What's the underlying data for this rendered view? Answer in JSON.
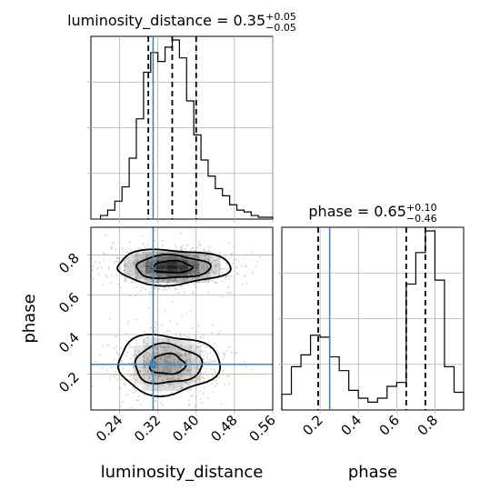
{
  "chart_data": [
    {
      "type": "histogram",
      "panel": "luminosity_distance-marginal",
      "title": "luminosity_distance = 0.35",
      "title_sup": "+0.05",
      "title_sub": "−0.05",
      "x_range": [
        0.18,
        0.56
      ],
      "bin_edges": [
        0.2,
        0.215,
        0.23,
        0.245,
        0.26,
        0.275,
        0.29,
        0.305,
        0.32,
        0.335,
        0.35,
        0.365,
        0.38,
        0.395,
        0.41,
        0.425,
        0.44,
        0.455,
        0.47,
        0.485,
        0.5,
        0.515,
        0.53,
        0.545,
        0.56
      ],
      "density": [
        0.02,
        0.05,
        0.1,
        0.18,
        0.34,
        0.56,
        0.82,
        0.93,
        0.88,
        0.96,
        1.0,
        0.9,
        0.66,
        0.47,
        0.33,
        0.24,
        0.17,
        0.13,
        0.08,
        0.05,
        0.04,
        0.02,
        0.01,
        0.01
      ],
      "quantiles": [
        0.3,
        0.35,
        0.4
      ],
      "truth": 0.31
    },
    {
      "type": "histogram",
      "panel": "phase-marginal",
      "title": "phase = 0.65",
      "title_sup": "+0.10",
      "title_sub": "−0.46",
      "x_range": [
        0.0,
        0.95
      ],
      "bin_edges": [
        0.0,
        0.05,
        0.1,
        0.15,
        0.2,
        0.25,
        0.3,
        0.35,
        0.4,
        0.45,
        0.5,
        0.55,
        0.6,
        0.65,
        0.7,
        0.75,
        0.8,
        0.85,
        0.9,
        0.95
      ],
      "density": [
        0.08,
        0.22,
        0.28,
        0.38,
        0.37,
        0.27,
        0.2,
        0.1,
        0.06,
        0.04,
        0.06,
        0.12,
        0.14,
        0.64,
        0.8,
        0.91,
        0.66,
        0.22,
        0.09
      ],
      "quantiles": [
        0.19,
        0.65,
        0.75
      ],
      "truth": 0.25
    },
    {
      "type": "scatter",
      "panel": "luminosity_distance-vs-phase",
      "x_range": [
        0.18,
        0.56
      ],
      "y_range": [
        0.02,
        0.94
      ],
      "xlabel": "luminosity_distance",
      "ylabel": "phase",
      "xticks": [
        "0.24",
        "0.32",
        "0.40",
        "0.48",
        "0.56"
      ],
      "yticks": [
        "0.2",
        "0.4",
        "0.6",
        "0.8"
      ],
      "truth": [
        0.31,
        0.25
      ],
      "modes": [
        {
          "center": [
            0.35,
            0.74
          ],
          "sigma": [
            0.05,
            0.05
          ],
          "count": 800
        },
        {
          "center": [
            0.34,
            0.25
          ],
          "sigma": [
            0.045,
            0.085
          ],
          "count": 560
        }
      ],
      "contour_levels": 3
    },
    {
      "type": "axis",
      "panel": "phase-axis",
      "xlabel": "phase",
      "xticks": [
        "0.2",
        "0.4",
        "0.6",
        "0.8"
      ]
    }
  ]
}
